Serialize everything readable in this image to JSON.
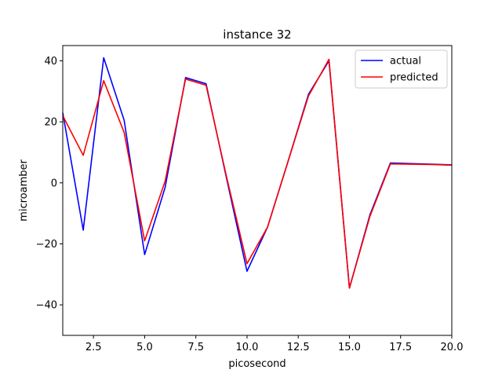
{
  "chart_data": {
    "type": "line",
    "title": "instance 32",
    "xlabel": "picosecond",
    "ylabel": "microamber",
    "xlim": [
      1,
      20
    ],
    "ylim": [
      -50,
      45
    ],
    "xticks": [
      2.5,
      5.0,
      7.5,
      10.0,
      12.5,
      15.0,
      17.5,
      20.0
    ],
    "xtick_labels": [
      "2.5",
      "5.0",
      "7.5",
      "10.0",
      "12.5",
      "15.0",
      "17.5",
      "20.0"
    ],
    "yticks": [
      -40,
      -20,
      0,
      20,
      40
    ],
    "ytick_labels": [
      "−40",
      "−20",
      "0",
      "20",
      "40"
    ],
    "grid": false,
    "legend_position": "top-right",
    "x": [
      1,
      2,
      3,
      4,
      5,
      6,
      7,
      8,
      9,
      10,
      11,
      12,
      13,
      14,
      15,
      16,
      17,
      18,
      19,
      20
    ],
    "series": [
      {
        "name": "actual",
        "color": "#0000ff",
        "values": [
          23,
          -15.5,
          41,
          20.5,
          -23.5,
          -1.5,
          34.5,
          32.5,
          1.5,
          -29,
          -14.5,
          7,
          29,
          40,
          -34.5,
          -10.5,
          6.5,
          6.3,
          6.1,
          5.9
        ]
      },
      {
        "name": "predicted",
        "color": "#ff0000",
        "values": [
          22,
          9,
          33.5,
          16.5,
          -19,
          0.5,
          34,
          32,
          2,
          -26.5,
          -14.5,
          7,
          28.5,
          40.5,
          -34.5,
          -11,
          6.2,
          6.1,
          6.0,
          5.8
        ]
      }
    ]
  }
}
